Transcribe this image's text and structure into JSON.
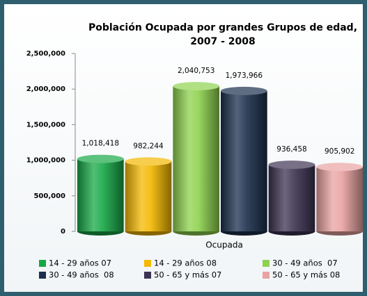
{
  "chart_data": {
    "type": "bar",
    "title": [
      "Población Ocupada por grandes Grupos de edad,",
      "2007 - 2008"
    ],
    "categories": [
      "Ocupada"
    ],
    "series": [
      {
        "name": "14 - 29 años 07",
        "color": "#17a846",
        "values": [
          1018418
        ],
        "value_labels": [
          "1,018,418"
        ]
      },
      {
        "name": "14 - 29 años 08",
        "color": "#f4b800",
        "values": [
          982244
        ],
        "value_labels": [
          "982,244"
        ]
      },
      {
        "name": "30 - 49 años  07",
        "color": "#8ed24e",
        "values": [
          2040753
        ],
        "value_labels": [
          "2,040,753"
        ]
      },
      {
        "name": "30 - 49 años  08",
        "color": "#1b2f4d",
        "values": [
          1973966
        ],
        "value_labels": [
          "1,973,966"
        ]
      },
      {
        "name": "50 - 65 y más 07",
        "color": "#3c3352",
        "values": [
          936458
        ],
        "value_labels": [
          "936,458"
        ]
      },
      {
        "name": "50 - 65 y más 08",
        "color": "#eaa2a2",
        "values": [
          905902
        ],
        "value_labels": [
          "905,902"
        ]
      }
    ],
    "ylim": [
      0,
      2500000
    ],
    "yticks": [
      0,
      {
        "value": 500000,
        "label": "500,000"
      },
      {
        "value": 1000000,
        "label": "1,000,000"
      },
      {
        "value": 1500000,
        "label": "1,500,000"
      },
      {
        "value": 2000000,
        "label": "2,000,000"
      },
      {
        "value": 2500000,
        "label": "2,500,000"
      }
    ],
    "grid": false,
    "legend": "bottom"
  }
}
